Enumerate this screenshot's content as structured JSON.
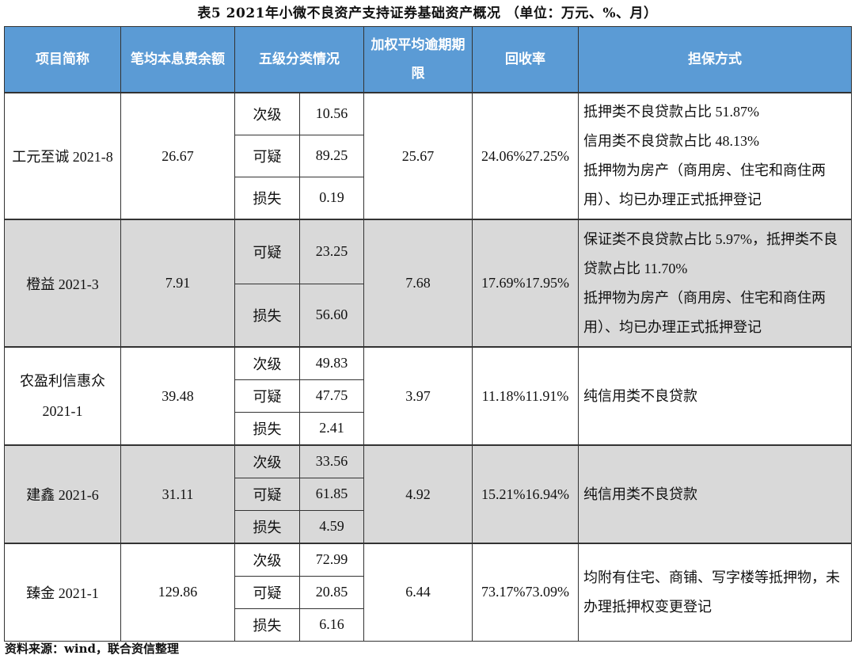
{
  "title": "表5 2021年小微不良资产支持证券基础资产概况 （单位：万元、%、月）",
  "headers": [
    "项目简称",
    "笔均本息费余额",
    "五级分类情况",
    "加权平均逾期期限",
    "回收率",
    "担保方式"
  ],
  "rows": [
    {
      "name": "工元至诚 2021-8",
      "balance": "26.67",
      "classes": [
        [
          "次级",
          "10.56"
        ],
        [
          "可疑",
          "89.25"
        ],
        [
          "损失",
          "0.19"
        ]
      ],
      "overdue": "25.67",
      "recovery": "24.06%27.25%",
      "guarantee": [
        "抵押类不良贷款占比 51.87%",
        "信用类不良贷款占比 48.13%",
        "抵押物为房产（商用房、住宅和商住两用）、均已办理正式抵押登记"
      ],
      "gray": false
    },
    {
      "name": "橙益 2021-3",
      "balance": "7.91",
      "classes": [
        [
          "可疑",
          "23.25"
        ],
        [
          "损失",
          "56.60"
        ]
      ],
      "overdue": "7.68",
      "recovery": "17.69%17.95%",
      "guarantee": [
        "保证类不良贷款占比 5.97%，抵押类不良贷款占比 11.70%",
        "抵押物为房产（商用房、住宅和商住两用）、均已办理正式抵押登记"
      ],
      "gray": true
    },
    {
      "name": "农盈利信惠众 2021-1",
      "balance": "39.48",
      "classes": [
        [
          "次级",
          "49.83"
        ],
        [
          "可疑",
          "47.75"
        ],
        [
          "损失",
          "2.41"
        ]
      ],
      "overdue": "3.97",
      "recovery": "11.18%11.91%",
      "guarantee": [
        "纯信用类不良贷款"
      ],
      "gray": false
    },
    {
      "name": "建鑫 2021-6",
      "balance": "31.11",
      "classes": [
        [
          "次级",
          "33.56"
        ],
        [
          "可疑",
          "61.85"
        ],
        [
          "损失",
          "4.59"
        ]
      ],
      "overdue": "4.92",
      "recovery": "15.21%16.94%",
      "guarantee": [
        "纯信用类不良贷款"
      ],
      "gray": true
    },
    {
      "name": "臻金 2021-1",
      "balance": "129.86",
      "classes": [
        [
          "次级",
          "72.99"
        ],
        [
          "可疑",
          "20.85"
        ],
        [
          "损失",
          "6.16"
        ]
      ],
      "overdue": "6.44",
      "recovery": "73.17%73.09%",
      "guarantee": [
        "均附有住宅、商铺、写字楼等抵押物，未办理抵押权变更登记"
      ],
      "gray": false
    }
  ],
  "footer": "资料来源：wind，联合资信整理"
}
